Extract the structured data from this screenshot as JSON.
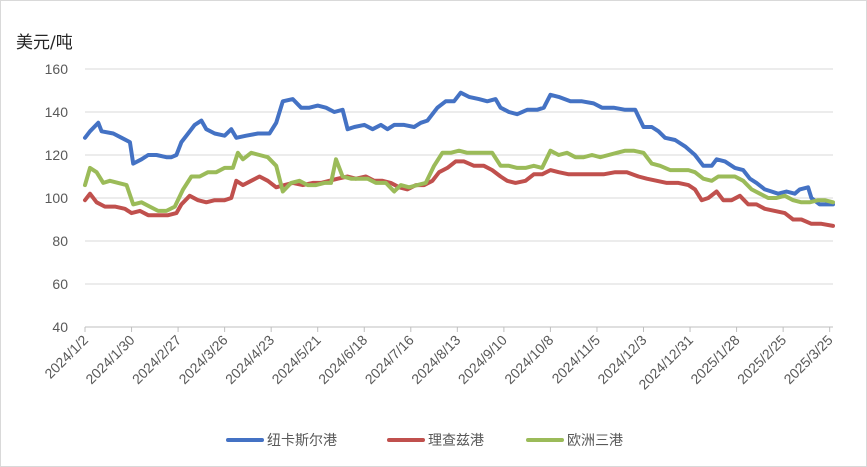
{
  "chart_data": {
    "type": "line",
    "unit_label": "美元/吨",
    "ylim": [
      40,
      160
    ],
    "yticks": [
      40,
      60,
      80,
      100,
      120,
      140,
      160
    ],
    "x_tick_labels": [
      "2024/1/2",
      "2024/1/30",
      "2024/2/27",
      "2024/3/26",
      "2024/4/23",
      "2024/5/21",
      "2024/6/18",
      "2024/7/16",
      "2024/8/13",
      "2024/9/10",
      "2024/10/8",
      "2024/11/5",
      "2024/12/3",
      "2024/12/31",
      "2025/1/28",
      "2025/2/25",
      "2025/3/25"
    ],
    "x_range": [
      "2024/1/2",
      "2025/3/27"
    ],
    "grid": "horizontal",
    "legend_position": "bottom",
    "series": [
      {
        "name": "纽卡斯尔港",
        "color": "#4472C4",
        "points": [
          [
            "2024/1/2",
            128
          ],
          [
            "2024/1/5",
            131
          ],
          [
            "2024/1/10",
            135
          ],
          [
            "2024/1/12",
            131
          ],
          [
            "2024/1/19",
            130
          ],
          [
            "2024/1/24",
            128
          ],
          [
            "2024/1/29",
            126
          ],
          [
            "2024/1/31",
            116
          ],
          [
            "2024/2/5",
            118
          ],
          [
            "2024/2/9",
            120
          ],
          [
            "2024/2/14",
            120
          ],
          [
            "2024/2/20",
            119
          ],
          [
            "2024/2/23",
            119
          ],
          [
            "2024/2/26",
            120
          ],
          [
            "2024/2/29",
            126
          ],
          [
            "2024/3/4",
            130
          ],
          [
            "2024/3/8",
            134
          ],
          [
            "2024/3/12",
            136
          ],
          [
            "2024/3/15",
            132
          ],
          [
            "2024/3/20",
            130
          ],
          [
            "2024/3/26",
            129
          ],
          [
            "2024/3/30",
            132
          ],
          [
            "2024/4/2",
            128
          ],
          [
            "2024/4/8",
            129
          ],
          [
            "2024/4/15",
            130
          ],
          [
            "2024/4/22",
            130
          ],
          [
            "2024/4/26",
            135
          ],
          [
            "2024/4/30",
            145
          ],
          [
            "2024/5/6",
            146
          ],
          [
            "2024/5/11",
            142
          ],
          [
            "2024/5/16",
            142
          ],
          [
            "2024/5/21",
            143
          ],
          [
            "2024/5/26",
            142
          ],
          [
            "2024/5/31",
            140
          ],
          [
            "2024/6/5",
            141
          ],
          [
            "2024/6/8",
            132
          ],
          [
            "2024/6/12",
            133
          ],
          [
            "2024/6/18",
            134
          ],
          [
            "2024/6/23",
            132
          ],
          [
            "2024/6/28",
            134
          ],
          [
            "2024/7/2",
            132
          ],
          [
            "2024/7/6",
            134
          ],
          [
            "2024/7/12",
            134
          ],
          [
            "2024/7/18",
            133
          ],
          [
            "2024/7/22",
            135
          ],
          [
            "2024/7/26",
            136
          ],
          [
            "2024/8/1",
            142
          ],
          [
            "2024/8/6",
            145
          ],
          [
            "2024/8/11",
            145
          ],
          [
            "2024/8/15",
            149
          ],
          [
            "2024/8/20",
            147
          ],
          [
            "2024/8/26",
            146
          ],
          [
            "2024/8/31",
            145
          ],
          [
            "2024/9/5",
            146
          ],
          [
            "2024/9/8",
            142
          ],
          [
            "2024/9/13",
            140
          ],
          [
            "2024/9/18",
            139
          ],
          [
            "2024/9/24",
            141
          ],
          [
            "2024/9/30",
            141
          ],
          [
            "2024/10/4",
            142
          ],
          [
            "2024/10/8",
            148
          ],
          [
            "2024/10/13",
            147
          ],
          [
            "2024/10/20",
            145
          ],
          [
            "2024/10/27",
            145
          ],
          [
            "2024/11/3",
            144
          ],
          [
            "2024/11/8",
            142
          ],
          [
            "2024/11/15",
            142
          ],
          [
            "2024/11/22",
            141
          ],
          [
            "2024/11/28",
            141
          ],
          [
            "2024/12/3",
            133
          ],
          [
            "2024/12/8",
            133
          ],
          [
            "2024/12/12",
            131
          ],
          [
            "2024/12/16",
            128
          ],
          [
            "2024/12/22",
            127
          ],
          [
            "2024/12/28",
            124
          ],
          [
            "2025/1/3",
            120
          ],
          [
            "2025/1/8",
            115
          ],
          [
            "2025/1/13",
            115
          ],
          [
            "2025/1/16",
            118
          ],
          [
            "2025/1/21",
            117
          ],
          [
            "2025/1/27",
            114
          ],
          [
            "2025/2/1",
            113
          ],
          [
            "2025/2/5",
            109
          ],
          [
            "2025/2/9",
            107
          ],
          [
            "2025/2/14",
            104
          ],
          [
            "2025/2/18",
            103
          ],
          [
            "2025/2/22",
            102
          ],
          [
            "2025/2/27",
            103
          ],
          [
            "2025/3/4",
            102
          ],
          [
            "2025/3/7",
            104
          ],
          [
            "2025/3/12",
            105
          ],
          [
            "2025/3/14",
            100
          ],
          [
            "2025/3/19",
            97
          ],
          [
            "2025/3/23",
            97
          ],
          [
            "2025/3/27",
            97
          ]
        ]
      },
      {
        "name": "理查兹港",
        "color": "#C0504D",
        "points": [
          [
            "2024/1/2",
            99
          ],
          [
            "2024/1/5",
            102
          ],
          [
            "2024/1/9",
            98
          ],
          [
            "2024/1/14",
            96
          ],
          [
            "2024/1/20",
            96
          ],
          [
            "2024/1/26",
            95
          ],
          [
            "2024/1/30",
            93
          ],
          [
            "2024/2/4",
            94
          ],
          [
            "2024/2/9",
            92
          ],
          [
            "2024/2/15",
            92
          ],
          [
            "2024/2/21",
            92
          ],
          [
            "2024/2/26",
            93
          ],
          [
            "2024/2/29",
            97
          ],
          [
            "2024/3/5",
            101
          ],
          [
            "2024/3/10",
            99
          ],
          [
            "2024/3/15",
            98
          ],
          [
            "2024/3/20",
            99
          ],
          [
            "2024/3/26",
            99
          ],
          [
            "2024/3/30",
            100
          ],
          [
            "2024/4/2",
            108
          ],
          [
            "2024/4/6",
            106
          ],
          [
            "2024/4/11",
            108
          ],
          [
            "2024/4/16",
            110
          ],
          [
            "2024/4/21",
            108
          ],
          [
            "2024/4/26",
            105
          ],
          [
            "2024/5/1",
            106
          ],
          [
            "2024/5/6",
            107
          ],
          [
            "2024/5/12",
            106
          ],
          [
            "2024/5/18",
            107
          ],
          [
            "2024/5/23",
            107
          ],
          [
            "2024/5/28",
            108
          ],
          [
            "2024/6/2",
            109
          ],
          [
            "2024/6/8",
            110
          ],
          [
            "2024/6/13",
            109
          ],
          [
            "2024/6/19",
            110
          ],
          [
            "2024/6/24",
            108
          ],
          [
            "2024/6/29",
            108
          ],
          [
            "2024/7/4",
            107
          ],
          [
            "2024/7/9",
            105
          ],
          [
            "2024/7/14",
            104
          ],
          [
            "2024/7/19",
            106
          ],
          [
            "2024/7/24",
            106
          ],
          [
            "2024/7/29",
            108
          ],
          [
            "2024/8/2",
            112
          ],
          [
            "2024/8/7",
            114
          ],
          [
            "2024/8/12",
            117
          ],
          [
            "2024/8/17",
            117
          ],
          [
            "2024/8/23",
            115
          ],
          [
            "2024/8/29",
            115
          ],
          [
            "2024/9/3",
            113
          ],
          [
            "2024/9/8",
            110
          ],
          [
            "2024/9/12",
            108
          ],
          [
            "2024/9/17",
            107
          ],
          [
            "2024/9/23",
            108
          ],
          [
            "2024/9/28",
            111
          ],
          [
            "2024/10/3",
            111
          ],
          [
            "2024/10/8",
            113
          ],
          [
            "2024/10/13",
            112
          ],
          [
            "2024/10/19",
            111
          ],
          [
            "2024/10/26",
            111
          ],
          [
            "2024/11/2",
            111
          ],
          [
            "2024/11/9",
            111
          ],
          [
            "2024/11/16",
            112
          ],
          [
            "2024/11/23",
            112
          ],
          [
            "2024/11/30",
            110
          ],
          [
            "2024/12/5",
            109
          ],
          [
            "2024/12/11",
            108
          ],
          [
            "2024/12/17",
            107
          ],
          [
            "2024/12/24",
            107
          ],
          [
            "2024/12/30",
            106
          ],
          [
            "2025/1/3",
            104
          ],
          [
            "2025/1/7",
            99
          ],
          [
            "2025/1/11",
            100
          ],
          [
            "2025/1/16",
            103
          ],
          [
            "2025/1/20",
            99
          ],
          [
            "2025/1/25",
            99
          ],
          [
            "2025/1/30",
            101
          ],
          [
            "2025/2/4",
            97
          ],
          [
            "2025/2/9",
            97
          ],
          [
            "2025/2/14",
            95
          ],
          [
            "2025/2/20",
            94
          ],
          [
            "2025/2/26",
            93
          ],
          [
            "2025/3/3",
            90
          ],
          [
            "2025/3/8",
            90
          ],
          [
            "2025/3/14",
            88
          ],
          [
            "2025/3/20",
            88
          ],
          [
            "2025/3/27",
            87
          ]
        ]
      },
      {
        "name": "欧洲三港",
        "color": "#9BBB59",
        "points": [
          [
            "2024/1/2",
            106
          ],
          [
            "2024/1/5",
            114
          ],
          [
            "2024/1/9",
            112
          ],
          [
            "2024/1/13",
            107
          ],
          [
            "2024/1/17",
            108
          ],
          [
            "2024/1/22",
            107
          ],
          [
            "2024/1/27",
            106
          ],
          [
            "2024/1/31",
            97
          ],
          [
            "2024/2/5",
            98
          ],
          [
            "2024/2/10",
            96
          ],
          [
            "2024/2/15",
            94
          ],
          [
            "2024/2/20",
            94
          ],
          [
            "2024/2/25",
            96
          ],
          [
            "2024/3/1",
            104
          ],
          [
            "2024/3/6",
            110
          ],
          [
            "2024/3/11",
            110
          ],
          [
            "2024/3/16",
            112
          ],
          [
            "2024/3/21",
            112
          ],
          [
            "2024/3/26",
            114
          ],
          [
            "2024/3/31",
            114
          ],
          [
            "2024/4/3",
            121
          ],
          [
            "2024/4/6",
            118
          ],
          [
            "2024/4/11",
            121
          ],
          [
            "2024/4/16",
            120
          ],
          [
            "2024/4/21",
            119
          ],
          [
            "2024/4/26",
            115
          ],
          [
            "2024/4/30",
            103
          ],
          [
            "2024/5/5",
            107
          ],
          [
            "2024/5/10",
            108
          ],
          [
            "2024/5/15",
            106
          ],
          [
            "2024/5/20",
            106
          ],
          [
            "2024/5/25",
            107
          ],
          [
            "2024/5/29",
            107
          ],
          [
            "2024/6/1",
            118
          ],
          [
            "2024/6/5",
            110
          ],
          [
            "2024/6/10",
            109
          ],
          [
            "2024/6/15",
            109
          ],
          [
            "2024/6/20",
            109
          ],
          [
            "2024/6/25",
            107
          ],
          [
            "2024/7/1",
            107
          ],
          [
            "2024/7/6",
            103
          ],
          [
            "2024/7/10",
            106
          ],
          [
            "2024/7/15",
            105
          ],
          [
            "2024/7/20",
            106
          ],
          [
            "2024/7/25",
            107
          ],
          [
            "2024/7/30",
            115
          ],
          [
            "2024/8/4",
            121
          ],
          [
            "2024/8/9",
            121
          ],
          [
            "2024/8/14",
            122
          ],
          [
            "2024/8/19",
            121
          ],
          [
            "2024/8/24",
            121
          ],
          [
            "2024/8/29",
            121
          ],
          [
            "2024/9/3",
            121
          ],
          [
            "2024/9/8",
            115
          ],
          [
            "2024/9/13",
            115
          ],
          [
            "2024/9/18",
            114
          ],
          [
            "2024/9/23",
            114
          ],
          [
            "2024/9/28",
            115
          ],
          [
            "2024/10/3",
            114
          ],
          [
            "2024/10/8",
            122
          ],
          [
            "2024/10/13",
            120
          ],
          [
            "2024/10/18",
            121
          ],
          [
            "2024/10/23",
            119
          ],
          [
            "2024/10/28",
            119
          ],
          [
            "2024/11/2",
            120
          ],
          [
            "2024/11/7",
            119
          ],
          [
            "2024/11/12",
            120
          ],
          [
            "2024/11/17",
            121
          ],
          [
            "2024/11/22",
            122
          ],
          [
            "2024/11/27",
            122
          ],
          [
            "2024/12/3",
            121
          ],
          [
            "2024/12/8",
            116
          ],
          [
            "2024/12/13",
            115
          ],
          [
            "2024/12/19",
            113
          ],
          [
            "2024/12/25",
            113
          ],
          [
            "2024/12/30",
            113
          ],
          [
            "2025/1/3",
            112
          ],
          [
            "2025/1/8",
            109
          ],
          [
            "2025/1/13",
            108
          ],
          [
            "2025/1/17",
            110
          ],
          [
            "2025/1/22",
            110
          ],
          [
            "2025/1/27",
            110
          ],
          [
            "2025/2/1",
            108
          ],
          [
            "2025/2/6",
            104
          ],
          [
            "2025/2/11",
            102
          ],
          [
            "2025/2/16",
            100
          ],
          [
            "2025/2/21",
            100
          ],
          [
            "2025/2/26",
            101
          ],
          [
            "2025/3/3",
            99
          ],
          [
            "2025/3/8",
            98
          ],
          [
            "2025/3/13",
            98
          ],
          [
            "2025/3/18",
            99
          ],
          [
            "2025/3/22",
            99
          ],
          [
            "2025/3/27",
            98
          ]
        ]
      }
    ]
  }
}
